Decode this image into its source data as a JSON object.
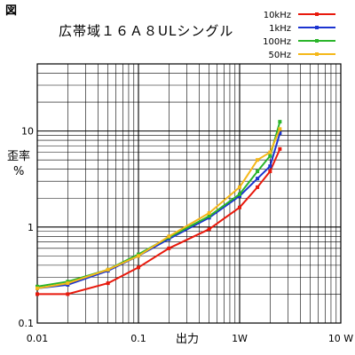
{
  "figure_label": "図",
  "chart_data": {
    "type": "line",
    "title": "広帯域１６Ａ８ULシングル",
    "xlabel": "出力",
    "ylabel": [
      "歪率",
      "%"
    ],
    "x_scale": "log",
    "y_scale": "log",
    "xlim": [
      0.01,
      10
    ],
    "ylim": [
      0.1,
      50
    ],
    "x_ticks": [
      {
        "value": 0.01,
        "label": "0.01"
      },
      {
        "value": 0.1,
        "label": "0.1"
      },
      {
        "value": 1,
        "label": "1W"
      },
      {
        "value": 10,
        "label": "10 W"
      }
    ],
    "y_ticks": [
      {
        "value": 0.1,
        "label": "0.1"
      },
      {
        "value": 1,
        "label": "1"
      },
      {
        "value": 10,
        "label": "10"
      }
    ],
    "grid": true,
    "legend_position": "top-right",
    "series": [
      {
        "name": "10kHz",
        "color": "#e8190c",
        "points": [
          [
            0.01,
            0.2
          ],
          [
            0.02,
            0.2
          ],
          [
            0.05,
            0.26
          ],
          [
            0.1,
            0.38
          ],
          [
            0.2,
            0.6
          ],
          [
            0.5,
            0.95
          ],
          [
            1,
            1.6
          ],
          [
            1.5,
            2.6
          ],
          [
            2,
            3.8
          ],
          [
            2.5,
            6.5
          ]
        ]
      },
      {
        "name": "1kHz",
        "color": "#1c34d0",
        "points": [
          [
            0.01,
            0.23
          ],
          [
            0.02,
            0.25
          ],
          [
            0.05,
            0.35
          ],
          [
            0.1,
            0.5
          ],
          [
            0.2,
            0.75
          ],
          [
            0.5,
            1.25
          ],
          [
            1,
            2.1
          ],
          [
            1.5,
            3.2
          ],
          [
            2,
            4.3
          ],
          [
            2.5,
            9.5
          ]
        ]
      },
      {
        "name": "100Hz",
        "color": "#2bb52b",
        "points": [
          [
            0.01,
            0.24
          ],
          [
            0.02,
            0.27
          ],
          [
            0.05,
            0.36
          ],
          [
            0.1,
            0.52
          ],
          [
            0.2,
            0.78
          ],
          [
            0.5,
            1.3
          ],
          [
            1,
            2.2
          ],
          [
            1.5,
            3.8
          ],
          [
            2,
            5.5
          ],
          [
            2.5,
            12.5
          ]
        ]
      },
      {
        "name": "50Hz",
        "color": "#f5b81a",
        "points": [
          [
            0.01,
            0.23
          ],
          [
            0.02,
            0.26
          ],
          [
            0.05,
            0.36
          ],
          [
            0.1,
            0.5
          ],
          [
            0.2,
            0.8
          ],
          [
            0.5,
            1.4
          ],
          [
            1,
            2.6
          ],
          [
            1.5,
            5.0
          ],
          [
            2,
            6.0
          ],
          [
            2.5,
            10.5
          ]
        ]
      }
    ]
  }
}
